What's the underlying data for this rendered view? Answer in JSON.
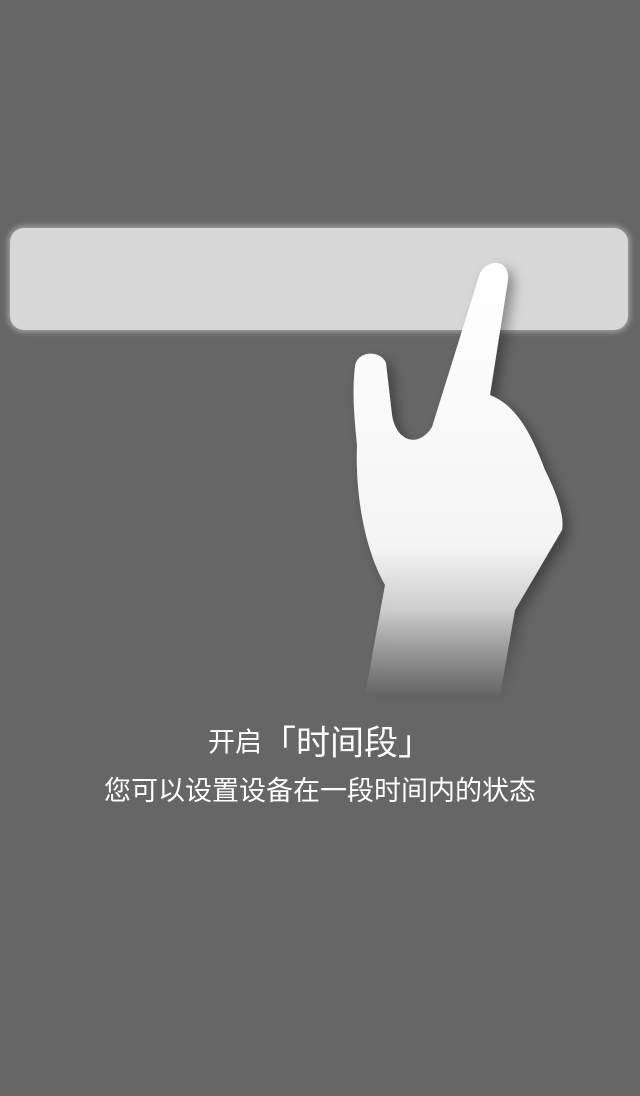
{
  "guide": {
    "title_prefix": "开启",
    "open_bracket": "「",
    "feature_name": "时间段",
    "close_bracket": "」",
    "description": "您可以设置设备在一段时间内的状态"
  },
  "icons": {
    "gesture": "tap-hand-icon"
  },
  "colors": {
    "overlay": "#666666",
    "highlight": "#d7d7d7",
    "text": "#ffffff"
  }
}
